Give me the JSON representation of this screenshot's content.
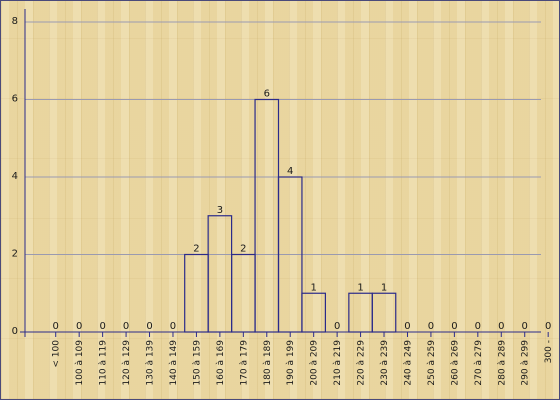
{
  "chart_data": {
    "type": "bar",
    "title": "",
    "xlabel": "",
    "ylabel": "",
    "ylim": [
      0,
      8
    ],
    "yticks": [
      "0",
      "2",
      "4",
      "6",
      "8"
    ],
    "grid": true,
    "categories": [
      "< 100",
      "100 à 109",
      "110 à 119",
      "120 à 129",
      "130 à 139",
      "140 à 149",
      "150 à 159",
      "160 à 169",
      "170 à 179",
      "180 à 189",
      "190 à 199",
      "200 à 209",
      "210 à 219",
      "220 à 229",
      "230 à 239",
      "240 à 249",
      "250 à 259",
      "260 à 269",
      "270 à 279",
      "280 à 289",
      "290 à 299",
      "300 -"
    ],
    "values": [
      0,
      0,
      0,
      0,
      0,
      0,
      2,
      3,
      2,
      6,
      4,
      1,
      0,
      1,
      1,
      0,
      0,
      0,
      0,
      0,
      0,
      0
    ],
    "colors": {
      "bar_stroke": "#2b2b8a",
      "axis": "#2b2b8a",
      "grid": "#9a9ab0"
    }
  }
}
